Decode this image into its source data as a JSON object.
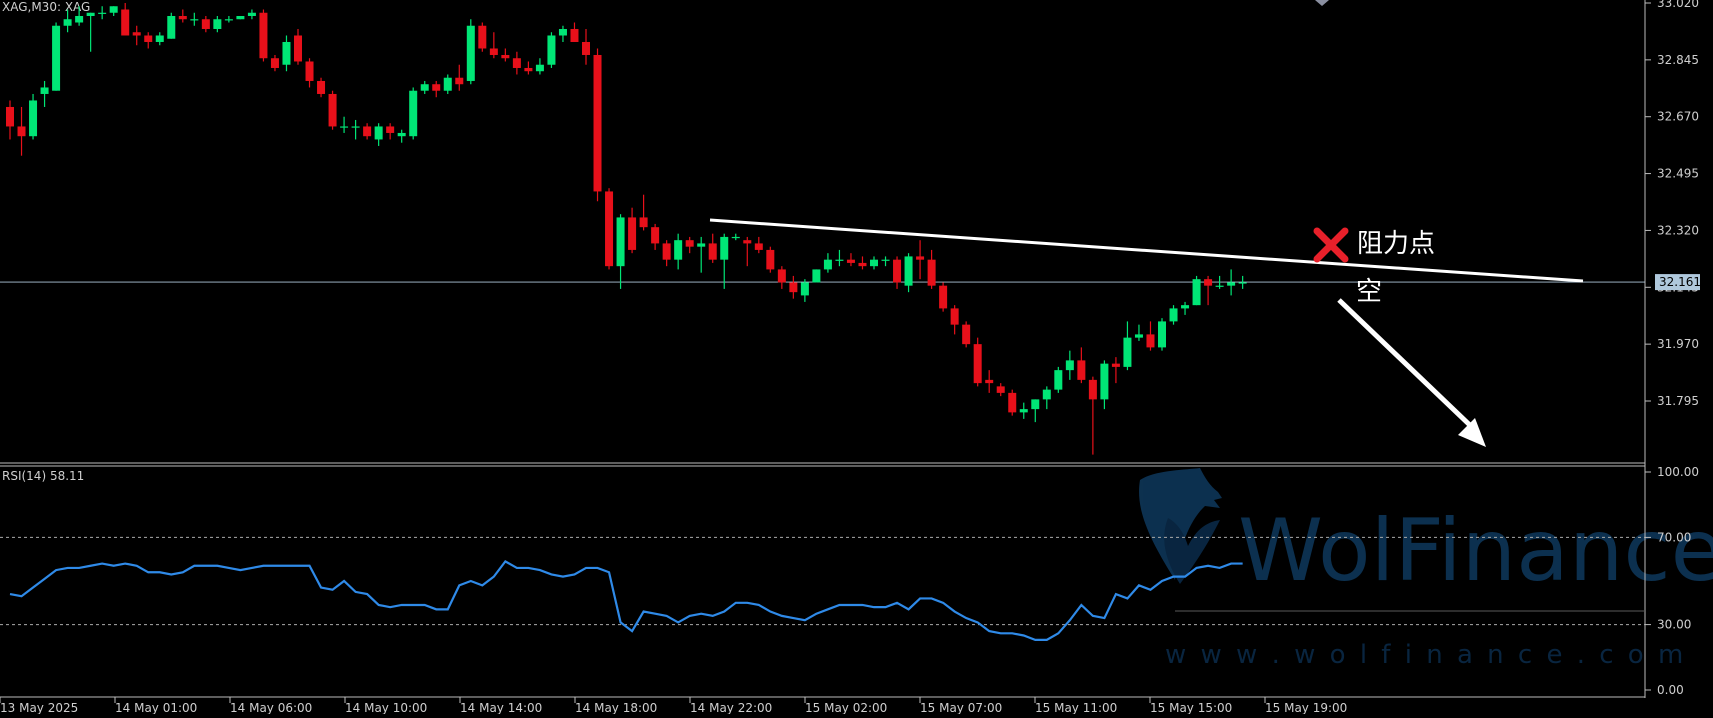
{
  "header": {
    "symbol_label": "XAG,M30:  XAG"
  },
  "annotations": {
    "resistance_label": "阻力点",
    "short_label": "空"
  },
  "watermark": {
    "brand": "WolFinance",
    "url": "w w w . w o l f i n a n c e . c o m"
  },
  "colors": {
    "background": "#000000",
    "bull": "#00E676",
    "bear": "#E8101A",
    "axis_text": "#CFCFCF",
    "price_line": "#AFC8DC",
    "rsi_line": "#2F8AE8",
    "resistance_line": "#FFFFFF",
    "cross_mark": "#E8202A",
    "watermark": "#0E3658"
  },
  "chart_data": [
    {
      "type": "candlestick",
      "title": "XAG,M30:  XAG",
      "x_tick_labels": [
        "13 May 2025",
        "14 May 01:00",
        "14 May 06:00",
        "14 May 10:00",
        "14 May 14:00",
        "14 May 18:00",
        "14 May 22:00",
        "15 May 02:00",
        "15 May 07:00",
        "15 May 11:00",
        "15 May 15:00",
        "15 May 19:00"
      ],
      "y_tick_labels": [
        "33.020",
        "32.845",
        "32.670",
        "32.495",
        "32.320",
        "32.145",
        "31.970",
        "31.795"
      ],
      "ylim": [
        31.63,
        33.02
      ],
      "current_price_label": "32.161",
      "current_price": 32.161,
      "grid": false,
      "candles": [
        [
          32.7,
          32.72,
          32.6,
          32.64
        ],
        [
          32.64,
          32.7,
          32.55,
          32.61
        ],
        [
          32.61,
          32.74,
          32.6,
          32.72
        ],
        [
          32.74,
          32.78,
          32.7,
          32.76
        ],
        [
          32.75,
          32.96,
          32.75,
          32.95
        ],
        [
          32.95,
          33.0,
          32.93,
          32.97
        ],
        [
          32.96,
          33.01,
          32.95,
          32.98
        ],
        [
          32.98,
          32.99,
          32.87,
          32.99
        ],
        [
          32.99,
          33.01,
          32.97,
          32.99
        ],
        [
          32.99,
          33.01,
          32.98,
          33.01
        ],
        [
          33.0,
          33.02,
          32.92,
          32.92
        ],
        [
          32.93,
          32.95,
          32.89,
          32.92
        ],
        [
          32.92,
          32.93,
          32.88,
          32.9
        ],
        [
          32.9,
          32.93,
          32.89,
          32.92
        ],
        [
          32.91,
          32.99,
          32.91,
          32.98
        ],
        [
          32.98,
          33.0,
          32.96,
          32.97
        ],
        [
          32.97,
          32.99,
          32.95,
          32.97
        ],
        [
          32.97,
          32.98,
          32.93,
          32.94
        ],
        [
          32.94,
          32.98,
          32.93,
          32.97
        ],
        [
          32.97,
          32.98,
          32.96,
          32.97
        ],
        [
          32.97,
          32.98,
          32.97,
          32.98
        ],
        [
          32.98,
          33.0,
          32.97,
          32.99
        ],
        [
          32.99,
          33.0,
          32.84,
          32.85
        ],
        [
          32.85,
          32.86,
          32.81,
          32.82
        ],
        [
          32.83,
          32.92,
          32.81,
          32.9
        ],
        [
          32.92,
          32.94,
          32.83,
          32.84
        ],
        [
          32.84,
          32.85,
          32.76,
          32.78
        ],
        [
          32.78,
          32.79,
          32.73,
          32.74
        ],
        [
          32.74,
          32.75,
          32.63,
          32.64
        ],
        [
          32.64,
          32.67,
          32.62,
          32.64
        ],
        [
          32.64,
          32.66,
          32.6,
          32.64
        ],
        [
          32.64,
          32.65,
          32.6,
          32.61
        ],
        [
          32.6,
          32.65,
          32.58,
          32.64
        ],
        [
          32.64,
          32.65,
          32.6,
          32.62
        ],
        [
          32.61,
          32.63,
          32.59,
          32.62
        ],
        [
          32.61,
          32.76,
          32.6,
          32.75
        ],
        [
          32.75,
          32.78,
          32.74,
          32.77
        ],
        [
          32.77,
          32.78,
          32.73,
          32.75
        ],
        [
          32.75,
          32.8,
          32.74,
          32.79
        ],
        [
          32.79,
          32.83,
          32.75,
          32.77
        ],
        [
          32.78,
          32.97,
          32.77,
          32.95
        ],
        [
          32.95,
          32.96,
          32.87,
          32.88
        ],
        [
          32.88,
          32.93,
          32.85,
          32.86
        ],
        [
          32.86,
          32.88,
          32.84,
          32.85
        ],
        [
          32.85,
          32.87,
          32.8,
          32.82
        ],
        [
          32.82,
          32.84,
          32.8,
          32.81
        ],
        [
          32.81,
          32.85,
          32.8,
          32.83
        ],
        [
          32.83,
          32.93,
          32.82,
          32.92
        ],
        [
          32.92,
          32.95,
          32.9,
          32.94
        ],
        [
          32.94,
          32.96,
          32.9,
          32.9
        ],
        [
          32.9,
          32.94,
          32.83,
          32.86
        ],
        [
          32.86,
          32.88,
          32.41,
          32.44
        ],
        [
          32.44,
          32.45,
          32.2,
          32.21
        ],
        [
          32.21,
          32.37,
          32.14,
          32.36
        ],
        [
          32.36,
          32.39,
          32.25,
          32.26
        ],
        [
          32.36,
          32.43,
          32.32,
          32.33
        ],
        [
          32.33,
          32.34,
          32.26,
          32.28
        ],
        [
          32.28,
          32.29,
          32.21,
          32.23
        ],
        [
          32.23,
          32.31,
          32.2,
          32.29
        ],
        [
          32.29,
          32.3,
          32.25,
          32.27
        ],
        [
          32.27,
          32.3,
          32.19,
          32.28
        ],
        [
          32.28,
          32.31,
          32.22,
          32.23
        ],
        [
          32.23,
          32.31,
          32.14,
          32.3
        ],
        [
          32.3,
          32.31,
          32.29,
          32.3
        ],
        [
          32.29,
          32.3,
          32.21,
          32.28
        ],
        [
          32.28,
          32.3,
          32.25,
          32.26
        ],
        [
          32.26,
          32.27,
          32.19,
          32.2
        ],
        [
          32.2,
          32.21,
          32.14,
          32.16
        ],
        [
          32.16,
          32.18,
          32.11,
          32.13
        ],
        [
          32.12,
          32.17,
          32.1,
          32.16
        ],
        [
          32.16,
          32.2,
          32.16,
          32.2
        ],
        [
          32.2,
          32.25,
          32.19,
          32.23
        ],
        [
          32.23,
          32.26,
          32.21,
          32.23
        ],
        [
          32.23,
          32.25,
          32.21,
          32.22
        ],
        [
          32.22,
          32.24,
          32.2,
          32.21
        ],
        [
          32.21,
          32.24,
          32.2,
          32.23
        ],
        [
          32.23,
          32.24,
          32.21,
          32.23
        ],
        [
          32.23,
          32.24,
          32.14,
          32.16
        ],
        [
          32.15,
          32.25,
          32.13,
          32.24
        ],
        [
          32.24,
          32.29,
          32.17,
          32.23
        ],
        [
          32.23,
          32.26,
          32.14,
          32.15
        ],
        [
          32.15,
          32.16,
          32.07,
          32.08
        ],
        [
          32.08,
          32.09,
          32.0,
          32.03
        ],
        [
          32.03,
          32.04,
          31.96,
          31.97
        ],
        [
          31.97,
          31.99,
          31.84,
          31.85
        ],
        [
          31.86,
          31.89,
          31.82,
          31.85
        ],
        [
          31.84,
          31.85,
          31.81,
          31.82
        ],
        [
          31.82,
          31.83,
          31.75,
          31.76
        ],
        [
          31.76,
          31.79,
          31.74,
          31.77
        ],
        [
          31.77,
          31.8,
          31.73,
          31.8
        ],
        [
          31.8,
          31.84,
          31.77,
          31.83
        ],
        [
          31.83,
          31.9,
          31.82,
          31.89
        ],
        [
          31.89,
          31.95,
          31.86,
          31.92
        ],
        [
          31.92,
          31.96,
          31.85,
          31.86
        ],
        [
          31.86,
          31.87,
          31.63,
          31.8
        ],
        [
          31.8,
          31.92,
          31.77,
          31.91
        ],
        [
          31.91,
          31.93,
          31.85,
          31.9
        ],
        [
          31.9,
          32.04,
          31.89,
          31.99
        ],
        [
          31.99,
          32.03,
          31.98,
          32.0
        ],
        [
          32.0,
          32.04,
          31.95,
          31.96
        ],
        [
          31.96,
          32.05,
          31.95,
          32.04
        ],
        [
          32.04,
          32.09,
          32.03,
          32.08
        ],
        [
          32.08,
          32.1,
          32.06,
          32.09
        ],
        [
          32.09,
          32.18,
          32.09,
          32.17
        ],
        [
          32.17,
          32.18,
          32.09,
          32.15
        ],
        [
          32.15,
          32.18,
          32.14,
          32.15
        ],
        [
          32.15,
          32.2,
          32.12,
          32.16
        ],
        [
          32.16,
          32.18,
          32.14,
          32.16
        ]
      ]
    },
    {
      "type": "line",
      "title": "RSI(14) 58.11",
      "series": [
        {
          "name": "RSI(14)",
          "values": [
            44,
            43,
            47,
            51,
            55,
            56,
            56,
            57,
            58,
            57,
            58,
            57,
            54,
            54,
            53,
            54,
            57,
            57,
            57,
            56,
            55,
            56,
            57,
            57,
            57,
            57,
            57,
            47,
            46,
            50,
            45,
            44,
            39,
            38,
            39,
            39,
            39,
            37,
            37,
            48,
            50,
            48,
            52,
            59,
            56,
            56,
            55,
            53,
            52,
            53,
            56,
            56,
            54,
            31,
            27,
            36,
            35,
            34,
            31,
            34,
            35,
            34,
            36,
            40,
            40,
            39,
            36,
            34,
            33,
            32,
            35,
            37,
            39,
            39,
            39,
            38,
            38,
            40,
            37,
            42,
            42,
            40,
            36,
            33,
            31,
            27,
            26,
            26,
            25,
            23,
            23,
            26,
            32,
            39,
            34,
            33,
            44,
            42,
            48,
            46,
            50,
            52,
            52,
            56,
            57,
            56,
            58,
            58
          ]
        }
      ],
      "ylim": [
        0,
        100
      ],
      "y_tick_labels": [
        "100.00",
        "70.00",
        "30.00",
        "0.00"
      ],
      "levels": [
        70,
        30
      ]
    }
  ]
}
